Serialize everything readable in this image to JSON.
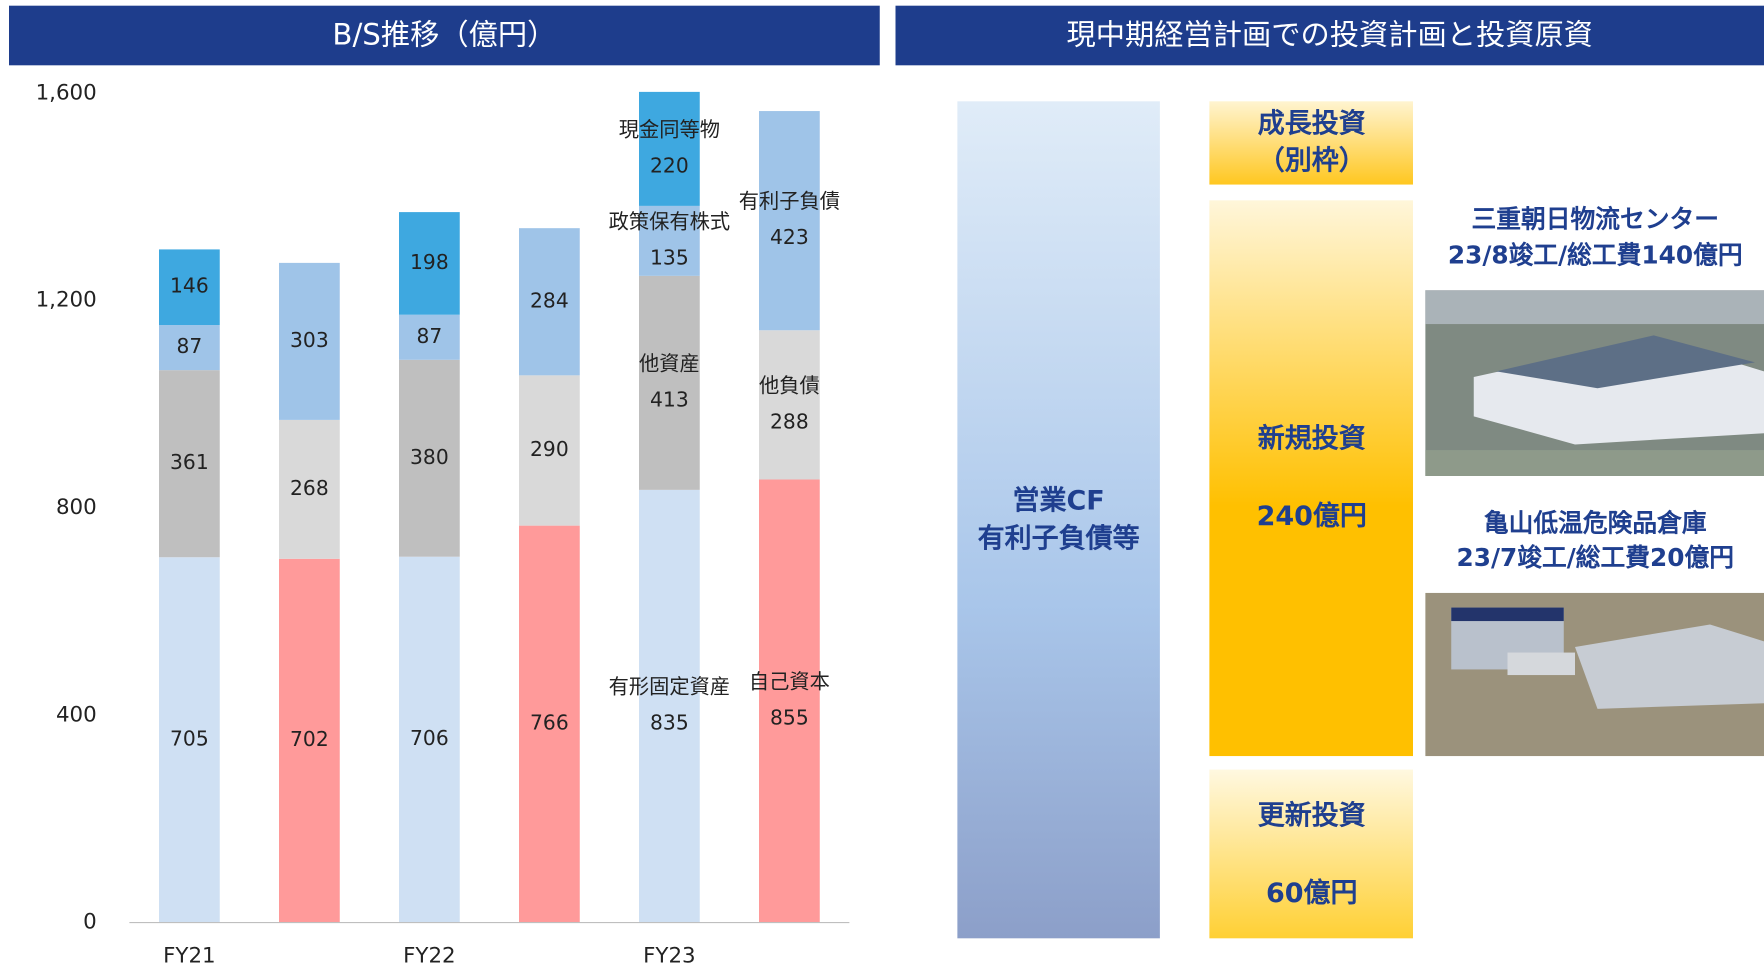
{
  "chart_data": {
    "type": "bar",
    "stacked": true,
    "title": "B/S推移（億円）",
    "categories": [
      "FY21",
      null,
      "FY22",
      null,
      "FY23",
      null
    ],
    "series": [
      {
        "name": "有形固定資産",
        "color": "#cfe0f3",
        "values": [
          705,
          null,
          706,
          null,
          835,
          null
        ]
      },
      {
        "name": "他資産",
        "color": "#bfbfbf",
        "values": [
          361,
          null,
          380,
          null,
          413,
          null
        ]
      },
      {
        "name": "政策保有株式",
        "color": "#9fc4e8",
        "values": [
          87,
          null,
          87,
          null,
          135,
          null
        ]
      },
      {
        "name": "現金同等物",
        "color": "#3ea8e0",
        "values": [
          146,
          null,
          198,
          null,
          220,
          null
        ]
      },
      {
        "name": "自己資本",
        "color": "#ff9a9a",
        "values": [
          null,
          702,
          null,
          766,
          null,
          855
        ]
      },
      {
        "name": "他負債",
        "color": "#d9d9d9",
        "values": [
          null,
          268,
          null,
          290,
          null,
          288
        ]
      },
      {
        "name": "有利子負債",
        "color": "#9fc4e8",
        "values": [
          null,
          303,
          null,
          284,
          null,
          423
        ]
      }
    ],
    "ylim": [
      0,
      1600
    ],
    "yticks": [
      0,
      400,
      800,
      {
        "value": 1200,
        "label": "1,200"
      },
      {
        "value": 1600,
        "label": "1,600"
      }
    ]
  },
  "plan": {
    "title": "現中期経営計画での投資計画と投資原資",
    "source": [
      "営業CF",
      "有利子負債等"
    ],
    "boxes": [
      [
        "成長投資",
        "（別枠）"
      ],
      [
        "新規投資",
        "240億円"
      ],
      [
        "更新投資",
        "60億円"
      ]
    ],
    "projects": [
      {
        "name": "三重朝日物流センター",
        "detail": "23/8竣工/総工費140億円"
      },
      {
        "name": "亀山低温危険品倉庫",
        "detail": "23/7竣工/総工費20億円"
      }
    ]
  }
}
